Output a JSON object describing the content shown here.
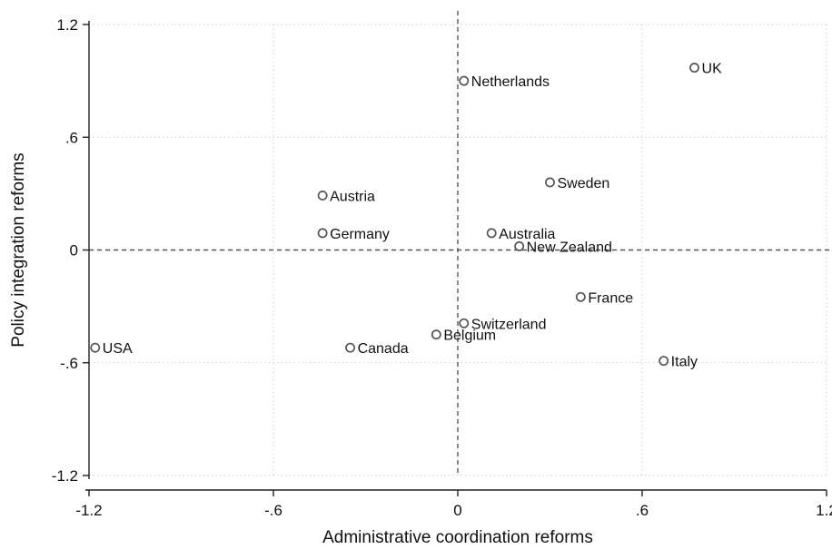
{
  "chart_data": {
    "type": "scatter",
    "title": "",
    "xlabel": "Administrative coordination reforms",
    "ylabel": "Policy integration reforms",
    "xlim": [
      -1.2,
      1.2
    ],
    "ylim": [
      -1.2,
      1.2
    ],
    "x_ticks": [
      -1.2,
      -0.6,
      0,
      0.6,
      1.2
    ],
    "y_ticks": [
      -1.2,
      -0.6,
      0,
      0.6,
      1.2
    ],
    "x_tick_labels": [
      "-1.2",
      "-.6",
      "0",
      ".6",
      "1.2"
    ],
    "y_tick_labels": [
      "-1.2",
      "-.6",
      "0",
      ".6",
      "1.2"
    ],
    "grid": true,
    "reference_lines": {
      "x": 0,
      "y": 0
    },
    "marker_color": "#555555",
    "points": [
      {
        "label": "UK",
        "x": 0.77,
        "y": 0.97
      },
      {
        "label": "Netherlands",
        "x": 0.02,
        "y": 0.9
      },
      {
        "label": "Sweden",
        "x": 0.3,
        "y": 0.36
      },
      {
        "label": "Austria",
        "x": -0.44,
        "y": 0.29
      },
      {
        "label": "Germany",
        "x": -0.44,
        "y": 0.09
      },
      {
        "label": "Australia",
        "x": 0.11,
        "y": 0.09
      },
      {
        "label": "New Zealand",
        "x": 0.2,
        "y": 0.02
      },
      {
        "label": "France",
        "x": 0.4,
        "y": -0.25
      },
      {
        "label": "Switzerland",
        "x": 0.02,
        "y": -0.39
      },
      {
        "label": "Belgium",
        "x": -0.07,
        "y": -0.45
      },
      {
        "label": "Canada",
        "x": -0.35,
        "y": -0.52
      },
      {
        "label": "USA",
        "x": -1.18,
        "y": -0.52
      },
      {
        "label": "Italy",
        "x": 0.67,
        "y": -0.59
      }
    ]
  }
}
